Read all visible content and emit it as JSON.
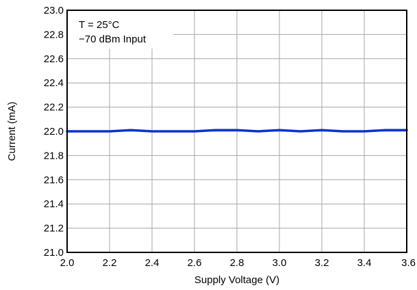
{
  "chart_data": {
    "type": "line",
    "title": "",
    "xlabel": "Supply Voltage (V)",
    "ylabel": "Current (mA)",
    "xlim": [
      2.0,
      3.6
    ],
    "ylim": [
      21.0,
      23.0
    ],
    "grid": true,
    "x_ticks": [
      "2.0",
      "2.2",
      "2.4",
      "2.6",
      "2.8",
      "3.0",
      "3.2",
      "3.4",
      "3.6"
    ],
    "y_ticks": [
      "21.0",
      "21.2",
      "21.4",
      "21.6",
      "21.8",
      "22.0",
      "22.2",
      "22.4",
      "22.6",
      "22.8",
      "23.0"
    ],
    "annotations": [
      "T = 25°C",
      "−70 dBm Input"
    ],
    "series": [
      {
        "color": "#0a32d2",
        "x": [
          2.0,
          2.1,
          2.2,
          2.3,
          2.4,
          2.5,
          2.6,
          2.7,
          2.8,
          2.9,
          3.0,
          3.1,
          3.2,
          3.3,
          3.4,
          3.5,
          3.6
        ],
        "y": [
          22.0,
          22.0,
          22.0,
          22.01,
          22.0,
          22.0,
          22.0,
          22.01,
          22.01,
          22.0,
          22.01,
          22.0,
          22.01,
          22.0,
          22.0,
          22.01,
          22.01
        ]
      }
    ]
  }
}
